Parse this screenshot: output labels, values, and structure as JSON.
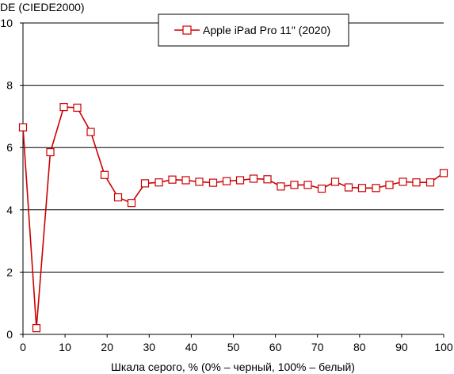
{
  "chart_data": {
    "type": "line",
    "ylabel": "DE (CIEDE2000)",
    "xlabel": "Шкала серого, % (0% – черный, 100% – белый)",
    "xlim": [
      0,
      100
    ],
    "ylim": [
      0,
      10
    ],
    "x_ticks": [
      0,
      10,
      20,
      30,
      40,
      50,
      60,
      70,
      80,
      90,
      100
    ],
    "y_ticks": [
      0,
      2,
      4,
      6,
      8,
      10
    ],
    "grid": "horizontal",
    "legend_position": "top-center",
    "series": [
      {
        "name": "Apple iPad Pro 11\" (2020)",
        "color": "#cc0000",
        "marker": "square-open",
        "x": [
          0,
          3.2,
          6.5,
          9.7,
          12.9,
          16.1,
          19.4,
          22.6,
          25.8,
          29.0,
          32.3,
          35.5,
          38.7,
          41.9,
          45.2,
          48.4,
          51.6,
          54.8,
          58.1,
          61.3,
          64.5,
          67.7,
          71.0,
          74.2,
          77.4,
          80.6,
          83.9,
          87.1,
          90.3,
          93.5,
          96.8,
          100
        ],
        "y": [
          6.65,
          0.2,
          5.85,
          7.3,
          7.28,
          6.5,
          5.12,
          4.4,
          4.22,
          4.85,
          4.88,
          4.97,
          4.95,
          4.9,
          4.87,
          4.92,
          4.95,
          5.0,
          4.98,
          4.75,
          4.8,
          4.8,
          4.68,
          4.9,
          4.72,
          4.7,
          4.7,
          4.8,
          4.9,
          4.88,
          4.88,
          5.18
        ]
      }
    ]
  }
}
